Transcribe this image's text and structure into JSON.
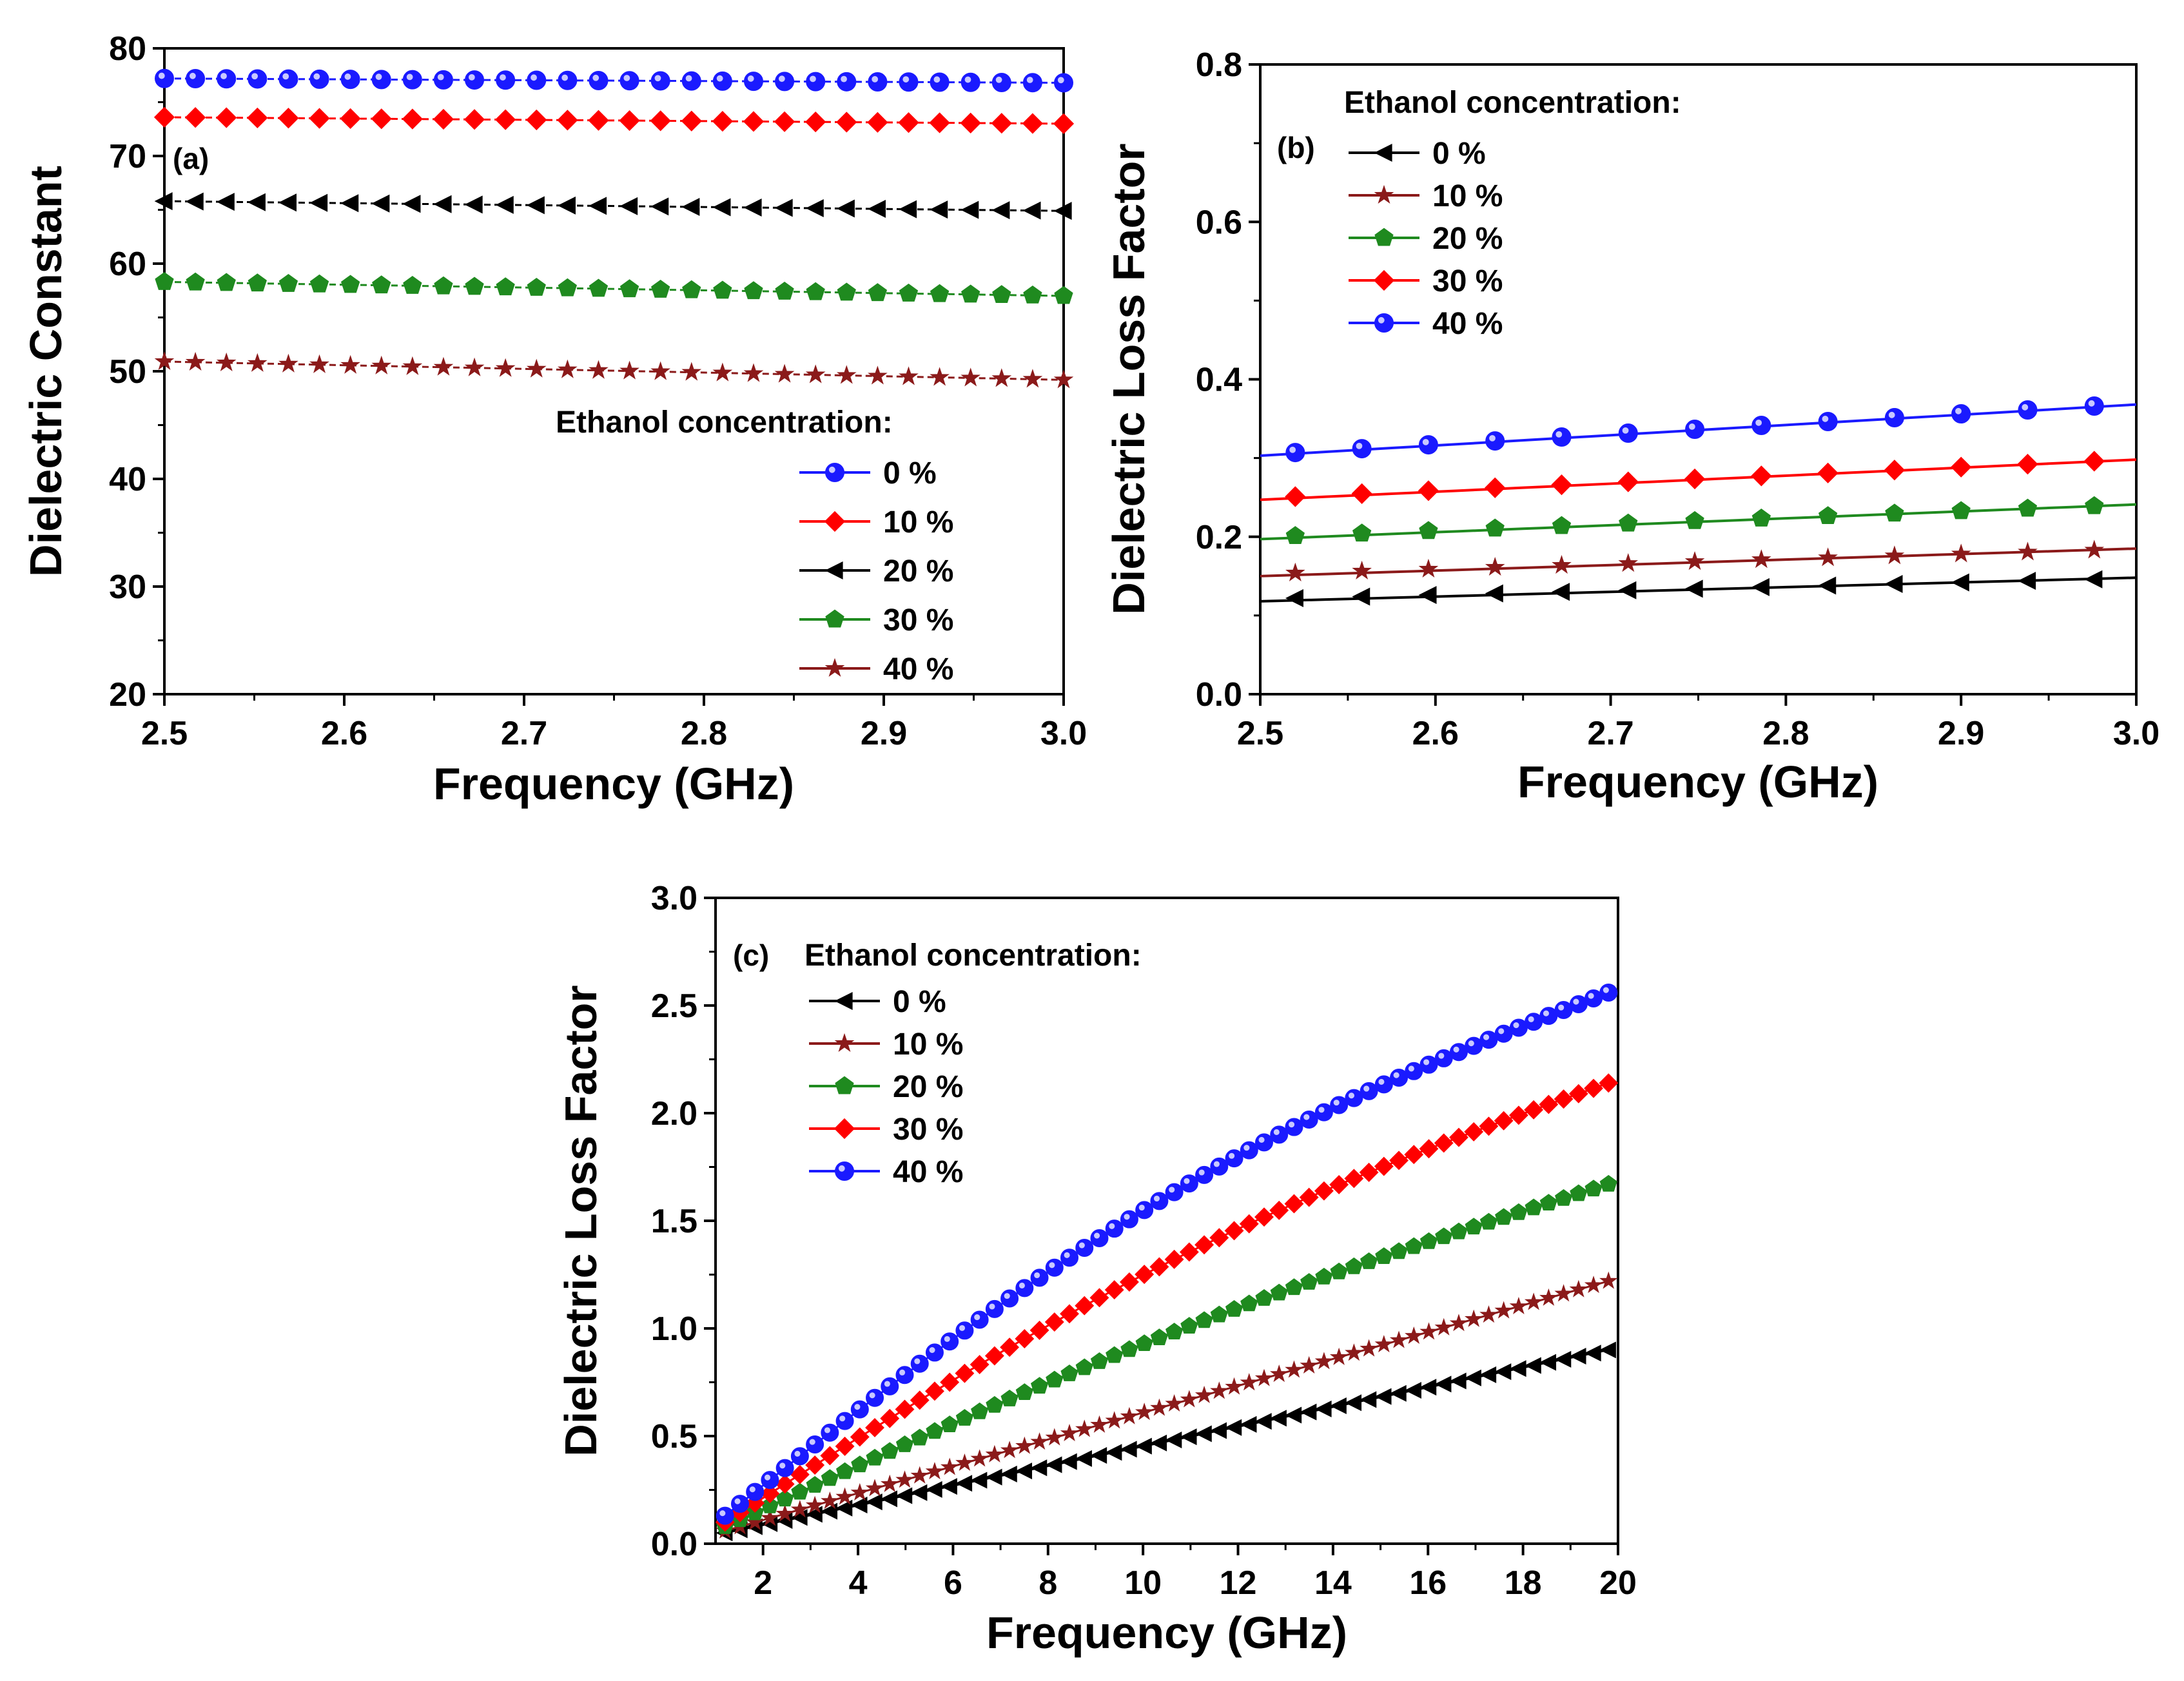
{
  "figure": {
    "colors": {
      "black": "#000000",
      "darkred": "#8b1a1a",
      "green": "#1f8a1f",
      "red": "#ff0000",
      "blue": "#1a1aff"
    }
  },
  "chart_data": [
    {
      "panel": "(a)",
      "type": "line",
      "xlabel": "Frequency (GHz)",
      "ylabel": "Dielectric Constant",
      "xlim": [
        2.5,
        3.0
      ],
      "ylim": [
        20,
        80
      ],
      "xticks": [
        "2.5",
        "2.6",
        "2.7",
        "2.8",
        "2.9",
        "3.0"
      ],
      "yticks": [
        "20",
        "30",
        "40",
        "50",
        "60",
        "70",
        "80"
      ],
      "legend_title": "Ethanol concentration:",
      "legend_position": "lower-right",
      "n_points": 30,
      "series": [
        {
          "name": "0 %",
          "marker": "circle",
          "color": "#1a1aff",
          "start": 77.2,
          "end": 76.8
        },
        {
          "name": "10 %",
          "marker": "diamond",
          "color": "#ff0000",
          "start": 73.6,
          "end": 73.0
        },
        {
          "name": "20 %",
          "marker": "triangle-left",
          "color": "#000000",
          "start": 65.8,
          "end": 64.9
        },
        {
          "name": "30 %",
          "marker": "pentagon",
          "color": "#1f8a1f",
          "start": 58.3,
          "end": 57.0
        },
        {
          "name": "40 %",
          "marker": "star",
          "color": "#8b1a1a",
          "start": 50.9,
          "end": 49.2
        }
      ]
    },
    {
      "panel": "(b)",
      "type": "line",
      "xlabel": "Frequency (GHz)",
      "ylabel": "Dielectric Loss Factor",
      "xlim": [
        2.5,
        3.0
      ],
      "ylim": [
        0.0,
        0.8
      ],
      "xticks": [
        "2.5",
        "2.6",
        "2.7",
        "2.8",
        "2.9",
        "3.0"
      ],
      "yticks": [
        "0.0",
        "0.2",
        "0.4",
        "0.6",
        "0.8"
      ],
      "legend_title": "Ethanol concentration:",
      "legend_position": "top-left",
      "x": [
        2.52,
        2.558,
        2.596,
        2.634,
        2.672,
        2.71,
        2.748,
        2.786,
        2.824,
        2.862,
        2.9,
        2.938,
        2.976
      ],
      "line_end_x": 3.0,
      "series": [
        {
          "name": "0 %",
          "marker": "triangle-left",
          "color": "#000000",
          "start": 0.122,
          "end": 0.146
        },
        {
          "name": "10 %",
          "marker": "star",
          "color": "#8b1a1a",
          "start": 0.154,
          "end": 0.183
        },
        {
          "name": "20 %",
          "marker": "pentagon",
          "color": "#1f8a1f",
          "start": 0.201,
          "end": 0.239
        },
        {
          "name": "30 %",
          "marker": "diamond",
          "color": "#ff0000",
          "start": 0.251,
          "end": 0.296
        },
        {
          "name": "40 %",
          "marker": "circle",
          "color": "#1a1aff",
          "start": 0.307,
          "end": 0.366
        }
      ]
    },
    {
      "panel": "(c)",
      "type": "line",
      "xlabel": "Frequency (GHz)",
      "ylabel": "Dielectric Loss Factor",
      "xlim": [
        1,
        20
      ],
      "ylim": [
        0.0,
        3.0
      ],
      "xticks": [
        "2",
        "4",
        "6",
        "8",
        "10",
        "12",
        "14",
        "16",
        "18",
        "20"
      ],
      "yticks": [
        "0.0",
        "0.5",
        "1.0",
        "1.5",
        "2.0",
        "2.5",
        "3.0"
      ],
      "legend_title": "Ethanol concentration:",
      "legend_position": "top-left",
      "x_start": 1.2,
      "x_end": 19.8,
      "n_points": 60,
      "series": [
        {
          "name": "0 %",
          "marker": "triangle-left",
          "color": "#000000",
          "start": 0.05,
          "end": 0.9,
          "curve": 0
        },
        {
          "name": "10 %",
          "marker": "star",
          "color": "#8b1a1a",
          "start": 0.06,
          "end": 1.22,
          "curve": 0
        },
        {
          "name": "20 %",
          "marker": "pentagon",
          "color": "#1f8a1f",
          "start": 0.08,
          "end": 1.67,
          "curve": 0.12
        },
        {
          "name": "30 %",
          "marker": "diamond",
          "color": "#ff0000",
          "start": 0.1,
          "end": 2.14,
          "curve": 0.18
        },
        {
          "name": "40 %",
          "marker": "circle",
          "color": "#1a1aff",
          "start": 0.13,
          "end": 2.56,
          "curve": 0.22
        }
      ]
    }
  ]
}
